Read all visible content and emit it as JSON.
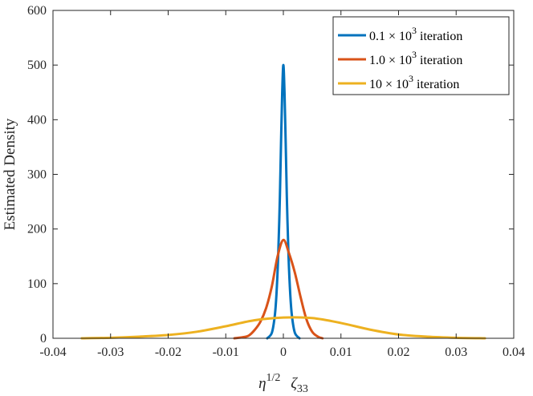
{
  "chart_data": {
    "type": "line",
    "title": "",
    "xlabel": {
      "base": "η",
      "exp": "1/2",
      "symbol": "ζ",
      "sub": "33"
    },
    "ylabel": "Estimated Density",
    "xlim": [
      -0.04,
      0.04
    ],
    "ylim": [
      0,
      600
    ],
    "xticks": [
      -0.04,
      -0.03,
      -0.02,
      -0.01,
      0,
      0.01,
      0.02,
      0.03,
      0.04
    ],
    "xtick_labels": [
      "-0.04",
      "-0.03",
      "-0.02",
      "-0.01",
      "0",
      "0.01",
      "0.02",
      "0.03",
      "0.04"
    ],
    "yticks": [
      0,
      100,
      200,
      300,
      400,
      500,
      600
    ],
    "ytick_labels": [
      "0",
      "100",
      "200",
      "300",
      "400",
      "500",
      "600"
    ],
    "grid": false,
    "legend_position": "top-right",
    "series": [
      {
        "name": "0.1 × 10^3 iteration",
        "legend": {
          "mantissa": "0.1",
          "times": "×",
          "base": "10",
          "exp": "3",
          "suffix": "iteration"
        },
        "color": "#0072BD",
        "x": [
          -0.0028,
          -0.002,
          -0.0015,
          -0.0012,
          -0.0009,
          -0.0006,
          -0.0004,
          -0.0002,
          0,
          0.0002,
          0.0004,
          0.0006,
          0.0009,
          0.0012,
          0.0015,
          0.002,
          0.0028
        ],
        "y": [
          0,
          10,
          40,
          80,
          150,
          260,
          360,
          450,
          500,
          450,
          360,
          260,
          150,
          80,
          40,
          10,
          0
        ]
      },
      {
        "name": "1.0 × 10^3 iteration",
        "legend": {
          "mantissa": "1.0",
          "times": "×",
          "base": "10",
          "exp": "3",
          "suffix": "iteration"
        },
        "color": "#D95319",
        "x": [
          -0.0085,
          -0.007,
          -0.006,
          -0.005,
          -0.004,
          -0.003,
          -0.002,
          -0.001,
          0,
          0.001,
          0.002,
          0.003,
          0.004,
          0.005,
          0.006,
          0.0068
        ],
        "y": [
          0,
          2,
          5,
          15,
          30,
          55,
          95,
          150,
          180,
          155,
          120,
          75,
          35,
          12,
          3,
          0
        ]
      },
      {
        "name": "10 × 10^3 iteration",
        "legend": {
          "mantissa": "10",
          "times": "×",
          "base": "10",
          "exp": "3",
          "suffix": "iteration"
        },
        "color": "#EDB120",
        "x": [
          -0.035,
          -0.03,
          -0.025,
          -0.02,
          -0.015,
          -0.01,
          -0.005,
          0,
          0.005,
          0.01,
          0.015,
          0.02,
          0.025,
          0.03,
          0.035
        ],
        "y": [
          0,
          1,
          3,
          6,
          12,
          22,
          33,
          38,
          37,
          28,
          16,
          7,
          3,
          1,
          0
        ]
      }
    ]
  }
}
